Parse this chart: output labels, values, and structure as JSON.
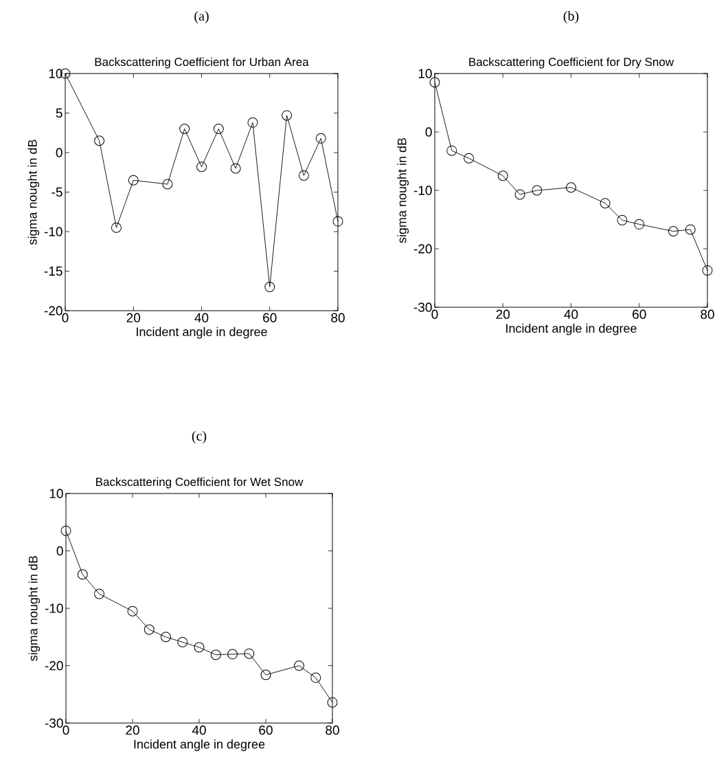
{
  "chart_data": [
    {
      "type": "line",
      "annotations": [
        "(a)"
      ],
      "title": "Backscattering Coefficient for Urban Area",
      "xlabel": "Incident angle in degree",
      "ylabel": "sigma nought in dB",
      "color": "#000000",
      "marker": "circle",
      "line_style": "solid",
      "x": [
        0,
        10,
        15,
        20,
        30,
        35,
        40,
        45,
        50,
        55,
        60,
        65,
        70,
        75,
        80
      ],
      "values": [
        10,
        1.5,
        -9.5,
        -3.5,
        -4,
        3,
        -1.8,
        3,
        -2,
        3.8,
        -17,
        4.7,
        -2.9,
        1.8,
        -8.7
      ],
      "xlim": [
        0,
        80
      ],
      "ylim": [
        -20,
        10
      ],
      "xticks": [
        0,
        20,
        40,
        60,
        80
      ],
      "yticks": [
        -20,
        -15,
        -10,
        -5,
        0,
        5,
        10
      ]
    },
    {
      "type": "line",
      "annotations": [
        "(b)"
      ],
      "title": "Backscattering Coefficient for Dry Snow",
      "xlabel": "Incident angle in degree",
      "ylabel": "sigma nought in dB",
      "color": "#000000",
      "marker": "circle",
      "line_style": "solid",
      "x": [
        0,
        5,
        10,
        20,
        25,
        30,
        40,
        50,
        55,
        60,
        70,
        75,
        80
      ],
      "values": [
        8.5,
        -3.2,
        -4.5,
        -7.5,
        -10.7,
        -10,
        -9.5,
        -12.2,
        -15.1,
        -15.8,
        -17,
        -16.7,
        -23.7
      ],
      "xlim": [
        0,
        80
      ],
      "ylim": [
        -30,
        10
      ],
      "xticks": [
        0,
        20,
        40,
        60,
        80
      ],
      "yticks": [
        -30,
        -20,
        -10,
        0,
        10
      ]
    },
    {
      "type": "line",
      "annotations": [
        "(c)"
      ],
      "title": "Backscattering Coefficient for Wet Snow",
      "xlabel": "Incident angle in degree",
      "ylabel": "sigma nought in dB",
      "color": "#000000",
      "marker": "circle",
      "line_style": "solid",
      "x": [
        0,
        5,
        10,
        20,
        25,
        30,
        35,
        40,
        45,
        50,
        55,
        60,
        70,
        75,
        80
      ],
      "values": [
        3.5,
        -4.1,
        -7.5,
        -10.5,
        -13.7,
        -15,
        -15.9,
        -16.8,
        -18.1,
        -18,
        -17.9,
        -21.6,
        -20,
        -22.1,
        -26.4
      ],
      "xlim": [
        0,
        80
      ],
      "ylim": [
        -30,
        10
      ],
      "xticks": [
        0,
        20,
        40,
        60,
        80
      ],
      "yticks": [
        -30,
        -20,
        -10,
        0,
        10
      ]
    }
  ]
}
